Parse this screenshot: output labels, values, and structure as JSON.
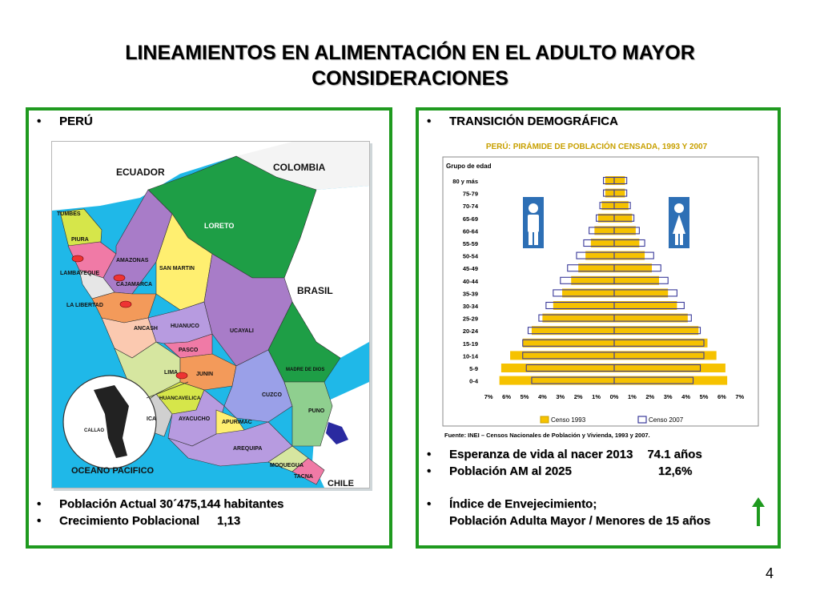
{
  "slide": {
    "title_line1": "LINEAMIENTOS EN ALIMENTACIÓN EN EL ADULTO MAYOR",
    "title_line2": "CONSIDERACIONES",
    "page_number": "4",
    "accent_color": "#1f9a1f"
  },
  "left": {
    "heading": "PERÚ",
    "bullets": [
      {
        "label": "Población Actual 30´475,144 habitantes",
        "value": ""
      },
      {
        "label": "Crecimiento Poblacional",
        "value": "1,13"
      }
    ],
    "map_labels": {
      "ecuador": "ECUADOR",
      "colombia": "COLOMBIA",
      "loreto": "LORETO",
      "brasil": "BRASIL",
      "tumbes": "TUMBES",
      "piura": "PIURA",
      "lambayeque": "LAMBAYEQUE",
      "amazonas": "AMAZONAS",
      "cajamarca": "CAJAMARCA",
      "san_martin": "SAN MARTIN",
      "la_libertad": "LA LIBERTAD",
      "ancash": "ANCASH",
      "huanuco": "HUANUCO",
      "ucayali": "UCAYALI",
      "pasco": "PASCO",
      "junin": "JUNIN",
      "lima": "LIMA",
      "madre_de_dios": "MADRE DE DIOS",
      "huancavelica": "HUANCAVELICA",
      "cuzco": "CUZCO",
      "ica": "ICA",
      "ayacucho": "AYACUCHO",
      "apurimac": "APURIMAC",
      "puno": "PUNO",
      "arequipa": "AREQUIPA",
      "moquegua": "MOQUEGUA",
      "tacna": "TACNA",
      "chile": "CHILE",
      "callao": "CALLAO",
      "oceano": "OCEANO PACIFICO"
    }
  },
  "right": {
    "heading": "TRANSICIÓN DEMOGRÁFICA",
    "bullets": [
      {
        "label": "Esperanza de vida al nacer 2013",
        "value": "74.1 años"
      },
      {
        "label": "Población AM al 2025",
        "value": "12,6%"
      },
      {
        "label": "Índice de Envejecimiento;",
        "value": ""
      }
    ],
    "ratio_line": "Población Adulta Mayor / Menores de 15 años",
    "arrow_color": "#1f9a1f"
  },
  "chart_data": {
    "type": "bar",
    "title": "PERÚ: PIRÁMIDE DE POBLACIÓN CENSADA, 1993 Y 2007",
    "ylabel": "Grupo de edad",
    "categories": [
      "80 y más",
      "75-79",
      "70-74",
      "65-69",
      "60-64",
      "55-59",
      "50-54",
      "45-49",
      "40-44",
      "35-39",
      "30-34",
      "25-29",
      "20-24",
      "15-19",
      "10-14",
      "5-9",
      "0-4"
    ],
    "x_tick_labels": [
      "7%",
      "6%",
      "5%",
      "4%",
      "3%",
      "2%",
      "1%",
      "0%",
      "1%",
      "2%",
      "3%",
      "4%",
      "5%",
      "6%",
      "7%"
    ],
    "xlim": [
      -7,
      7
    ],
    "series": [
      {
        "name": "Censo 1993",
        "color": "#f6c200",
        "male": [
          0.5,
          0.5,
          0.7,
          0.9,
          1.1,
          1.3,
          1.6,
          2.0,
          2.4,
          2.9,
          3.4,
          4.0,
          4.6,
          5.1,
          5.8,
          6.3,
          6.4
        ],
        "female": [
          0.6,
          0.6,
          0.8,
          1.0,
          1.2,
          1.4,
          1.7,
          2.1,
          2.5,
          3.0,
          3.5,
          4.1,
          4.7,
          5.2,
          5.7,
          6.2,
          6.3
        ]
      },
      {
        "name": "Censo 2007",
        "color": "#3a3a9a",
        "male": [
          0.6,
          0.6,
          0.8,
          1.0,
          1.4,
          1.7,
          2.1,
          2.6,
          3.0,
          3.4,
          3.8,
          4.2,
          4.8,
          5.1,
          5.1,
          4.9,
          4.6
        ],
        "female": [
          0.7,
          0.7,
          0.9,
          1.1,
          1.4,
          1.7,
          2.2,
          2.6,
          3.0,
          3.5,
          3.9,
          4.3,
          4.8,
          5.0,
          5.0,
          4.8,
          4.4
        ]
      }
    ],
    "legend_position": "bottom",
    "source": "Fuente: INEI – Censos Nacionales de Población y Vivienda, 1993 y 2007."
  }
}
